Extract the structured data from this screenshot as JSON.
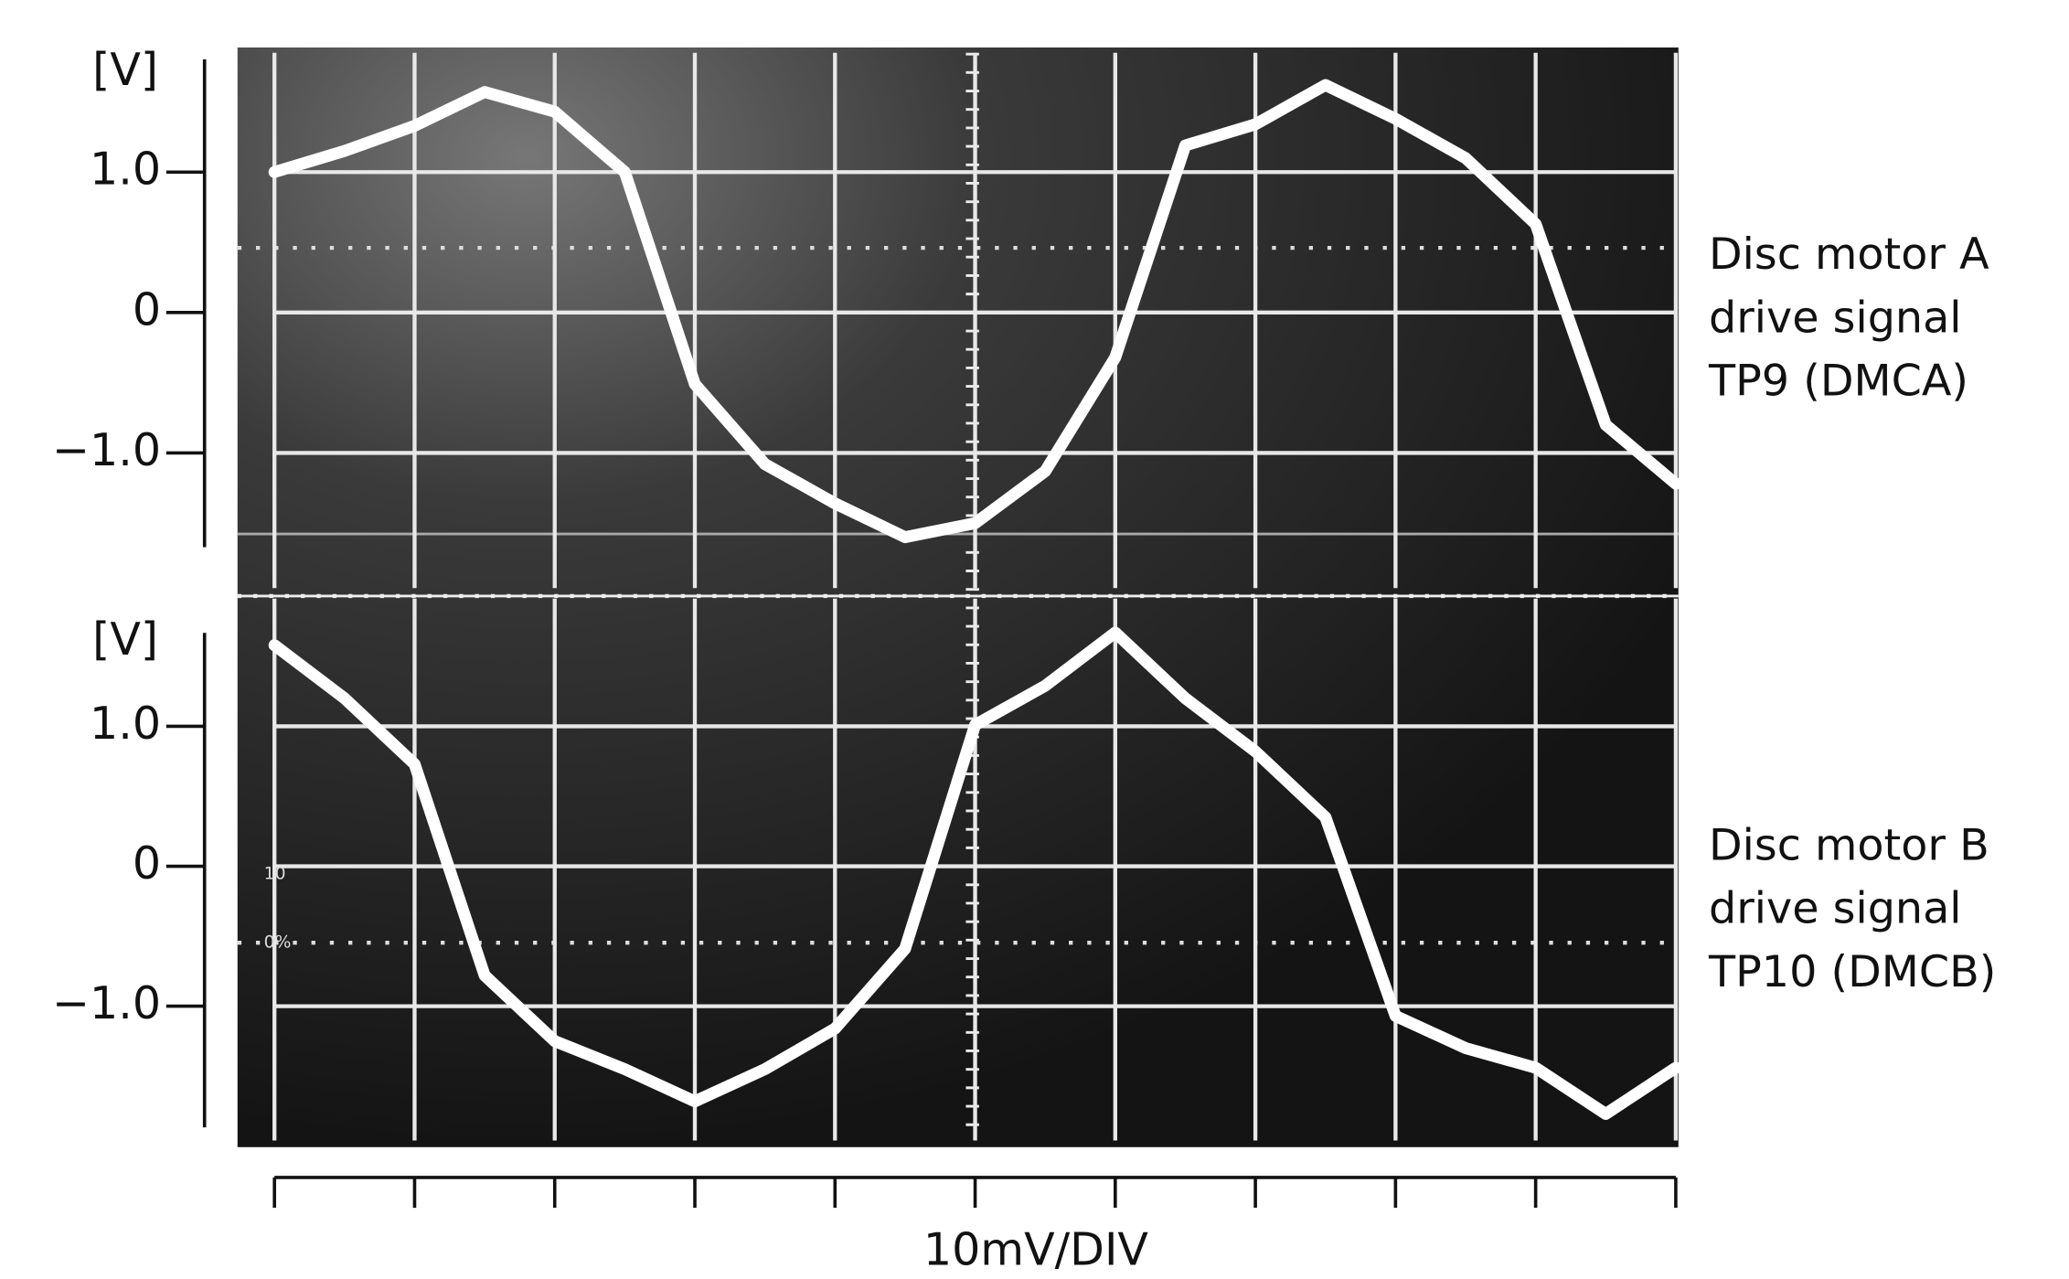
{
  "chart_data": [
    {
      "type": "line",
      "y_label": "[V]",
      "annotation": [
        "Disc motor A",
        "drive signal",
        "TP9 (DMCA)"
      ],
      "x": [
        0,
        0.5,
        1,
        1.5,
        2,
        2.5,
        3,
        3.5,
        4,
        4.5,
        5,
        5.5,
        6,
        6.5,
        7,
        7.5,
        8,
        8.5,
        9,
        9.5,
        10
      ],
      "series": [
        {
          "color": "#ffffff",
          "values": [
            1.0,
            1.15,
            1.33,
            1.57,
            1.43,
            1.0,
            -0.51,
            -1.08,
            -1.36,
            -1.6,
            -1.5,
            -1.13,
            -0.32,
            1.19,
            1.34,
            1.62,
            1.38,
            1.1,
            0.63,
            -0.8,
            -1.22
          ]
        }
      ],
      "xlim": [
        0,
        10
      ],
      "xticks": [
        0,
        1,
        2,
        3,
        4,
        5,
        6,
        7,
        8,
        9,
        10
      ],
      "ylim": [
        -2,
        1.85
      ],
      "yticks": [
        {
          "value": 1,
          "label": "1.0"
        },
        0,
        {
          "value": -1,
          "label": "−1.0"
        }
      ],
      "grid": true
    },
    {
      "type": "line",
      "y_label": "[V]",
      "annotation": [
        "Disc motor B",
        "drive signal",
        "TP10 (DMCB)"
      ],
      "screen_labels": [
        "10",
        "0%"
      ],
      "xlabel": "10mV/DIV",
      "x": [
        0,
        0.5,
        1,
        1.5,
        2,
        2.5,
        3,
        3.5,
        4,
        4.5,
        5,
        5.5,
        6,
        6.5,
        7,
        7.5,
        8,
        8.5,
        9,
        9.5,
        10
      ],
      "series": [
        {
          "color": "#ffffff",
          "values": [
            1.58,
            1.2,
            0.73,
            -0.78,
            -1.25,
            -1.45,
            -1.68,
            -1.45,
            -1.16,
            -0.59,
            1.01,
            1.29,
            1.67,
            1.2,
            0.82,
            0.35,
            -1.07,
            -1.3,
            -1.44,
            -1.77,
            -1.44
          ]
        }
      ],
      "xlim": [
        0,
        10
      ],
      "xticks": [
        0,
        1,
        2,
        3,
        4,
        5,
        6,
        7,
        8,
        9,
        10
      ],
      "ylim": [
        -1.96,
        1.95
      ],
      "yticks": [
        {
          "value": 1,
          "label": "1.0"
        },
        0,
        {
          "value": -1,
          "label": "−1.0"
        }
      ],
      "grid": true
    }
  ]
}
